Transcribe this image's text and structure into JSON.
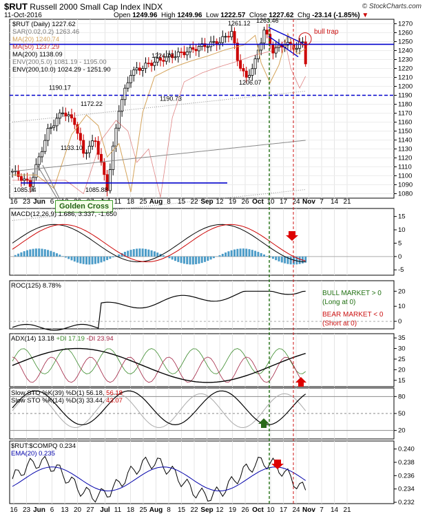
{
  "header": {
    "symbol": "$RUT",
    "name": "Russell 2000 Small Cap Index",
    "exchange": "INDX",
    "date": "11-Oct-2016",
    "open_label": "Open",
    "open": "1249.96",
    "high_label": "High",
    "high": "1249.96",
    "low_label": "Low",
    "low": "1222.57",
    "close_label": "Close",
    "close": "1227.62",
    "chg_label": "Chg",
    "chg": "-23.14 (-1.85%)",
    "brand": "© StockCharts.com"
  },
  "price_legend": [
    {
      "text": "$RUT (Daily) 1227.62",
      "color": "#000000"
    },
    {
      "text": "SAR(0.02,0.2) 1263.46",
      "color": "#777777"
    },
    {
      "text": "MA(20) 1240.74",
      "color": "#d4a35a"
    },
    {
      "text": "MA(50) 1237.29",
      "color": "#cc3333"
    },
    {
      "text": "MA(200) 1138.09",
      "color": "#000000"
    },
    {
      "text": "ENV(200,5.0) 1081.19 - 1195.00",
      "color": "#777777"
    },
    {
      "text": "ENV(200,10.0) 1024.29 - 1251.90",
      "color": "#000000"
    }
  ],
  "annotations": {
    "golden_cross": "Golden Cross",
    "bull_trap": "bull trap",
    "bull_market": [
      "BULL MARKET > 0",
      "(Long at 0)"
    ],
    "bear_market": [
      "BEAR MARKET < 0",
      "(Short at 0)"
    ],
    "price_labels": [
      "1261.12",
      "1263.46",
      "1224.77",
      "1190.17",
      "1172.22",
      "1190.73",
      "1206.07",
      "1133.10",
      "1085.94",
      "1085.88"
    ]
  },
  "x_axis": [
    "16",
    "23",
    "Jun",
    "6",
    "13",
    "20",
    "27",
    "Jul",
    "11",
    "18",
    "25",
    "Aug",
    "8",
    "15",
    "22",
    "Sep",
    "12",
    "19",
    "26",
    "Oct",
    "10",
    "17",
    "24",
    "Nov",
    "7",
    "14",
    "21"
  ],
  "panels": {
    "macd": {
      "legend": "MACD(12,26,9) 1.686, 3.337, -1.650",
      "ticks": [
        "15",
        "10",
        "5",
        "0",
        "-5"
      ]
    },
    "roc": {
      "legend": "ROC(125) 8.78%",
      "ticks": [
        "20",
        "10",
        "0"
      ]
    },
    "adx": {
      "legend_main": "ADX(14) 13.18",
      "legend_pdi": "+DI 17.19",
      "legend_mdi": "-DI 23.94",
      "ticks": [
        "35",
        "30",
        "25",
        "20",
        "15"
      ]
    },
    "sto": {
      "legend1_a": "Slow STO %K(39) %D(1) 56.18,",
      "legend1_b": "56.18",
      "legend2_a": "Slow STO %K(14) %D(3) 33.44,",
      "legend2_b": "43.07",
      "ticks": [
        "80",
        "50",
        "20"
      ]
    },
    "ratio": {
      "legend": "$RUT:$COMPQ 0.234",
      "legend2": "EMA(20) 0.235",
      "ticks": [
        "0.240",
        "0.238",
        "0.236",
        "0.234",
        "0.232"
      ]
    }
  },
  "colors": {
    "up": "#000000",
    "down": "#cc0000",
    "trend": "#0000cc",
    "histogram": "#4c9cc8",
    "signal_arrow": "#dd0000",
    "green_arrow": "#2a6a1a",
    "annot_green": "#1f6f10",
    "annot_red": "#cc1111"
  },
  "chart_data": {
    "type": "line",
    "title": "Russell 2000 Small Cap Index",
    "x": [
      "May 16",
      "Jun 1",
      "Jun 27",
      "Jul 25",
      "Aug 8",
      "Aug 22",
      "Sep 6",
      "Sep 9",
      "Sep 12",
      "Sep 19",
      "Sep 23",
      "Oct 3",
      "Oct 10",
      "Oct 11"
    ],
    "series": [
      {
        "name": "$RUT (Daily)",
        "values": [
          1105,
          1160,
          1085.88,
          1220,
          1238,
          1245,
          1261.12,
          1220,
          1206.07,
          1235,
          1263.46,
          1245,
          1250,
          1227.62
        ]
      }
    ],
    "y_ticks": [
      1080,
      1090,
      1100,
      1110,
      1120,
      1130,
      1140,
      1150,
      1160,
      1170,
      1180,
      1190,
      1200,
      1210,
      1220,
      1230,
      1240,
      1250,
      1260,
      1270
    ],
    "ylim": [
      1075,
      1275
    ],
    "horizontal_lines": [
      {
        "value": 1247,
        "style": "solid",
        "color": "#0000cc"
      },
      {
        "value": 1190,
        "style": "dashed",
        "color": "#0000cc"
      },
      {
        "value": 1092,
        "style": "solid",
        "color": "#0000cc"
      }
    ],
    "panels": [
      "MACD(12,26,9)",
      "ROC(125)",
      "ADX(14)",
      "Slow STO",
      "$RUT:$COMPQ"
    ]
  }
}
